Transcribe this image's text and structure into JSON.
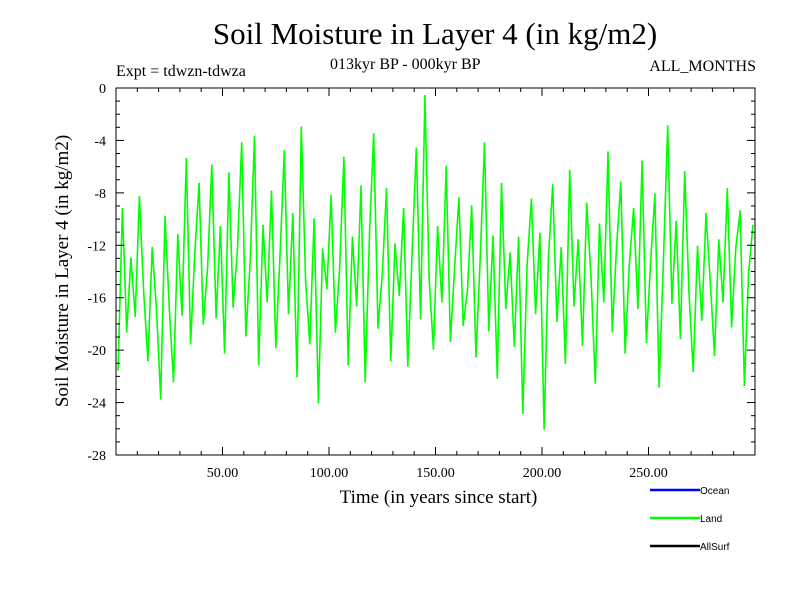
{
  "header": {
    "title": "Soil Moisture in Layer 4 (in kg/m2)",
    "subtitle": "013kyr BP - 000kyr BP",
    "expt": "Expt = tdwzn-tdwza",
    "months": "ALL_MONTHS"
  },
  "chart_data": {
    "type": "line",
    "title": "Soil Moisture in Layer 4 (in kg/m2)",
    "subtitle": "013kyr BP - 000kyr BP",
    "xlabel": "Time (in years since start)",
    "ylabel": "Soil Moisture in Layer 4 (in kg/m2)",
    "xlim": [
      0,
      300
    ],
    "ylim": [
      -28,
      0
    ],
    "x_ticks": [
      50,
      100,
      150,
      200,
      250
    ],
    "x_tick_labels": [
      "50.00",
      "100.00",
      "150.00",
      "200.00",
      "250.00"
    ],
    "y_ticks": [
      0,
      -4,
      -8,
      -12,
      -16,
      -20,
      -24,
      -28
    ],
    "y_tick_labels": [
      "0",
      "-4",
      "-8",
      "-12",
      "-16",
      "-20",
      "-24",
      "-28"
    ],
    "grid": false,
    "legend_position": "bottom-right",
    "legend": [
      {
        "name": "Ocean",
        "color": "#0000ff"
      },
      {
        "name": "Land",
        "color": "#00ff00"
      },
      {
        "name": "AllSurf",
        "color": "#000000"
      }
    ],
    "series": [
      {
        "name": "Land",
        "color": "#00ff00",
        "x": [
          1,
          3,
          5,
          7,
          9,
          11,
          13,
          15,
          17,
          19,
          21,
          23,
          25,
          27,
          29,
          31,
          33,
          35,
          37,
          39,
          41,
          43,
          45,
          47,
          49,
          51,
          53,
          55,
          57,
          59,
          61,
          63,
          65,
          67,
          69,
          71,
          73,
          75,
          77,
          79,
          81,
          83,
          85,
          87,
          89,
          91,
          93,
          95,
          97,
          99,
          101,
          103,
          105,
          107,
          109,
          111,
          113,
          115,
          117,
          119,
          121,
          123,
          125,
          127,
          129,
          131,
          133,
          135,
          137,
          139,
          141,
          143,
          145,
          147,
          149,
          151,
          153,
          155,
          157,
          159,
          161,
          163,
          165,
          167,
          169,
          171,
          173,
          175,
          177,
          179,
          181,
          183,
          185,
          187,
          189,
          191,
          193,
          195,
          197,
          199,
          201,
          203,
          205,
          207,
          209,
          211,
          213,
          215,
          217,
          219,
          221,
          223,
          225,
          227,
          229,
          231,
          233,
          235,
          237,
          239,
          241,
          243,
          245,
          247,
          249,
          251,
          253,
          255,
          257,
          259,
          261,
          263,
          265,
          267,
          269,
          271,
          273,
          275,
          277,
          279,
          281,
          283,
          285,
          287,
          289,
          291,
          293,
          295,
          297,
          299
        ],
        "y": [
          -21.5,
          -9.2,
          -18.6,
          -13.0,
          -17.4,
          -8.3,
          -15.6,
          -20.8,
          -12.2,
          -16.9,
          -23.7,
          -9.8,
          -16.8,
          -22.4,
          -11.2,
          -17.3,
          -5.4,
          -19.5,
          -12.6,
          -7.3,
          -18.0,
          -13.7,
          -5.9,
          -17.5,
          -10.6,
          -20.2,
          -6.5,
          -16.7,
          -12.4,
          -4.2,
          -18.9,
          -13.2,
          -3.7,
          -21.1,
          -10.5,
          -16.3,
          -7.9,
          -19.8,
          -12.8,
          -4.8,
          -17.2,
          -9.6,
          -22.0,
          -3.0,
          -14.7,
          -19.5,
          -10.0,
          -24.0,
          -12.3,
          -15.3,
          -8.2,
          -18.6,
          -13.8,
          -5.3,
          -21.1,
          -11.4,
          -16.6,
          -7.5,
          -22.4,
          -11.1,
          -3.5,
          -18.3,
          -14.2,
          -7.7,
          -20.8,
          -11.9,
          -15.8,
          -9.2,
          -21.2,
          -12.6,
          -4.6,
          -17.6,
          -0.6,
          -14.5,
          -19.9,
          -10.6,
          -16.3,
          -6.0,
          -19.3,
          -13.6,
          -8.4,
          -18.1,
          -15.4,
          -9.0,
          -20.5,
          -13.0,
          -4.2,
          -18.5,
          -11.3,
          -22.1,
          -7.3,
          -16.8,
          -12.6,
          -19.7,
          -11.4,
          -24.8,
          -13.5,
          -8.5,
          -17.2,
          -11.1,
          -26.0,
          -13.0,
          -7.4,
          -17.8,
          -12.2,
          -21.0,
          -6.3,
          -16.6,
          -11.6,
          -19.6,
          -8.8,
          -14.4,
          -22.5,
          -10.4,
          -16.3,
          -4.9,
          -18.6,
          -12.2,
          -7.2,
          -20.2,
          -13.5,
          -9.2,
          -16.8,
          -5.6,
          -19.4,
          -13.3,
          -8.1,
          -22.8,
          -13.2,
          -2.9,
          -16.4,
          -10.2,
          -19.1,
          -6.4,
          -15.6,
          -21.6,
          -12.1,
          -17.7,
          -9.6,
          -14.8,
          -20.4,
          -11.6,
          -16.3,
          -7.7,
          -18.2,
          -12.2,
          -9.4,
          -22.7,
          -14.1,
          -10.5
        ]
      }
    ]
  }
}
